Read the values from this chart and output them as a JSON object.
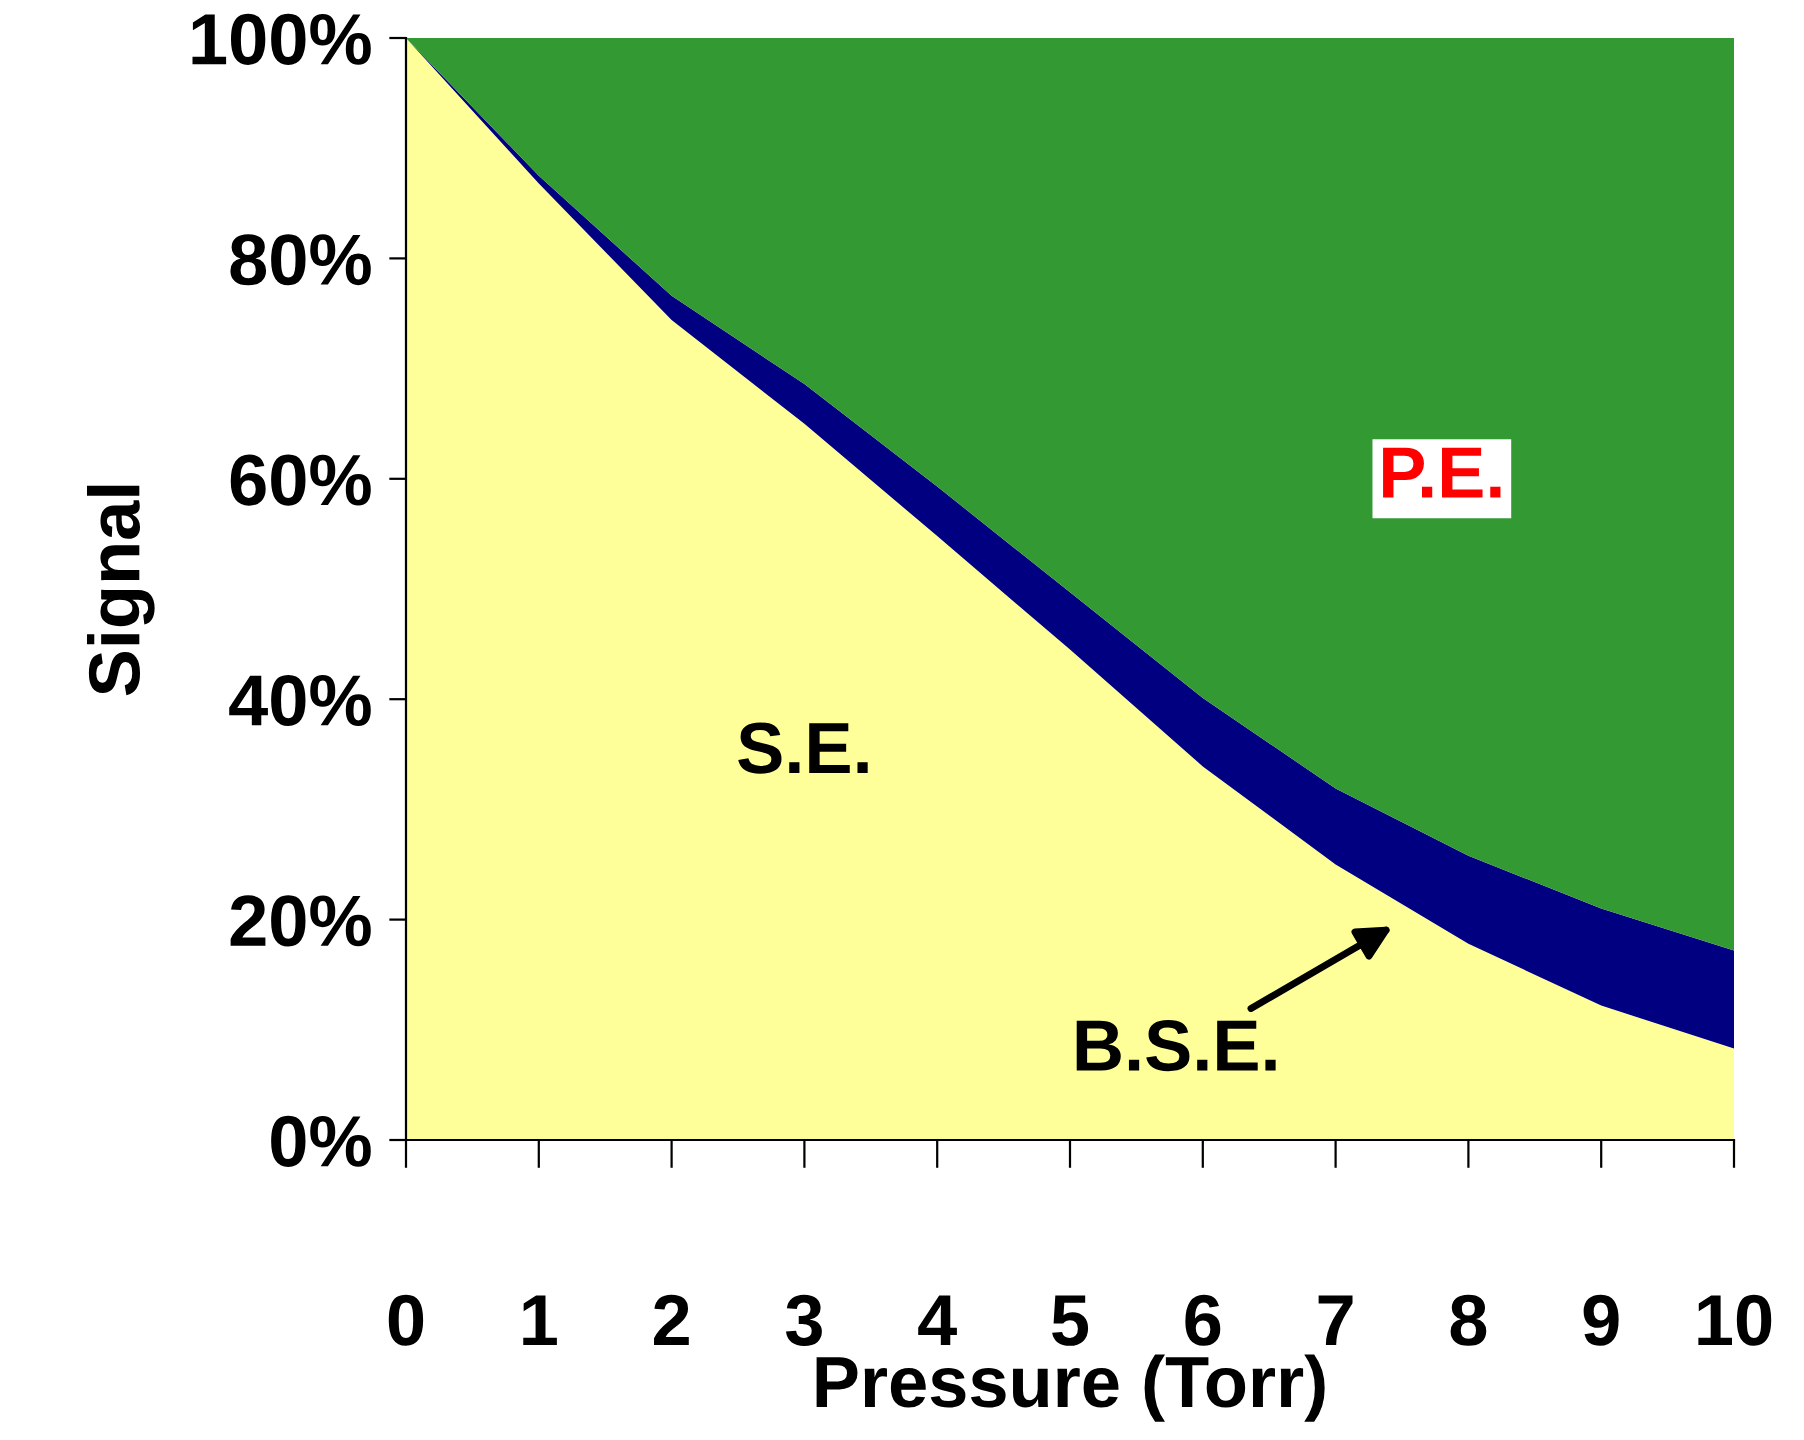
{
  "chart_data": {
    "type": "area",
    "stacked": true,
    "xlabel": "Pressure (Torr)",
    "ylabel": "Signal",
    "x": [
      0,
      1,
      2,
      3,
      4,
      5,
      6,
      7,
      8,
      9,
      10
    ],
    "series": [
      {
        "color": "#ffff99",
        "values": [
          100,
          86.8,
          74.4,
          65,
          54.8,
          44.5,
          33.9,
          25,
          17.8,
          12.2,
          8.3
        ]
      },
      {
        "color": "#000080",
        "values": [
          0,
          0.7,
          2.2,
          3.6,
          4.5,
          5.2,
          6.2,
          6.9,
          8,
          8.8,
          8.9
        ]
      },
      {
        "color": "#339933",
        "values": [
          0,
          12.5,
          23.4,
          31.4,
          40.7,
          50.3,
          59.9,
          68.1,
          74.2,
          79,
          82.8
        ]
      }
    ],
    "xlim": [
      0,
      10
    ],
    "xticks": [
      0,
      1,
      2,
      3,
      4,
      5,
      6,
      7,
      8,
      9,
      10
    ],
    "ylim": [
      0,
      100
    ],
    "yticks": [
      {
        "value": 0,
        "label": "0%"
      },
      {
        "value": 20,
        "label": "20%"
      },
      {
        "value": 40,
        "label": "40%"
      },
      {
        "value": 60,
        "label": "60%"
      },
      {
        "value": 80,
        "label": "80%"
      },
      {
        "value": 100,
        "label": "100%"
      }
    ],
    "annotations": [
      "S.E.",
      "B.S.E.",
      "P.E."
    ],
    "grid": false,
    "legend": false
  }
}
